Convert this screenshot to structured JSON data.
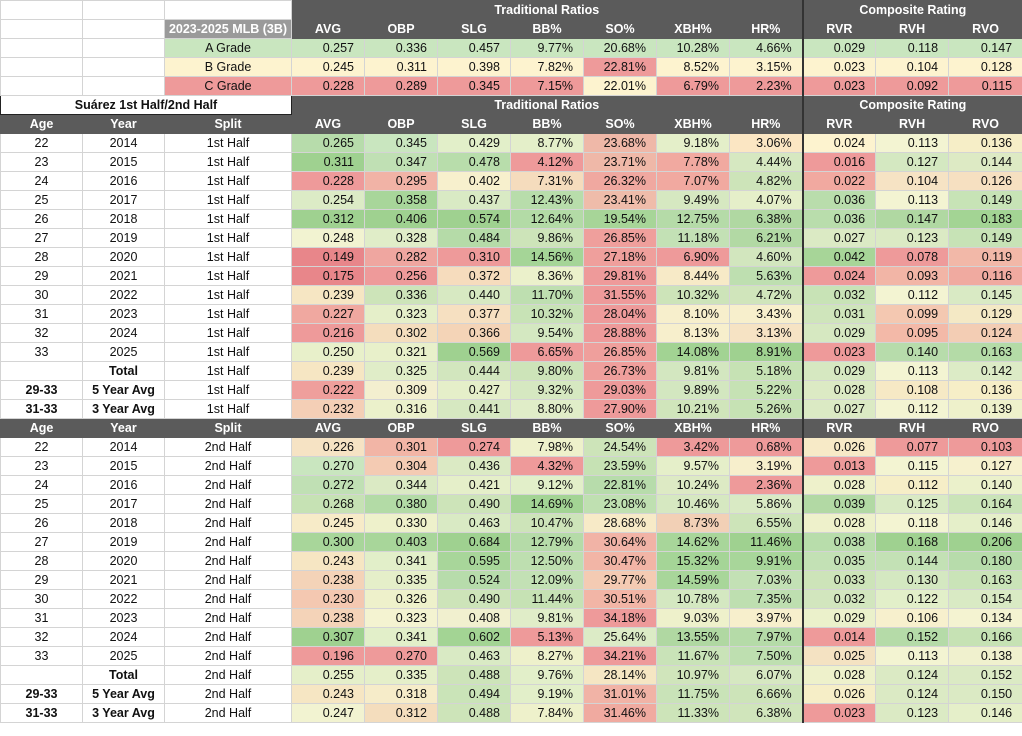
{
  "grades": {
    "label": "2023-2025 MLB (3B)",
    "group_traditional": "Traditional Ratios",
    "group_composite": "Composite Rating",
    "columns": [
      "AVG",
      "OBP",
      "SLG",
      "BB%",
      "SO%",
      "XBH%",
      "HR%",
      "RVR",
      "RVH",
      "RVO"
    ],
    "rows": [
      {
        "label": "A Grade",
        "values": [
          "0.257",
          "0.336",
          "0.457",
          "9.77%",
          "20.68%",
          "10.28%",
          "4.66%",
          "0.029",
          "0.118",
          "0.147"
        ],
        "colors": [
          "#c9e6bf",
          "#c9e6bf",
          "#c9e6bf",
          "#c9e6bf",
          "#c9e6bf",
          "#c9e6bf",
          "#c9e6bf",
          "#c9e6bf",
          "#c9e6bf",
          "#c9e6bf"
        ]
      },
      {
        "label": "B Grade",
        "values": [
          "0.245",
          "0.311",
          "0.398",
          "7.82%",
          "22.81%",
          "8.52%",
          "3.15%",
          "0.023",
          "0.104",
          "0.128"
        ],
        "colors": [
          "#fdf3cf",
          "#fdf3cf",
          "#fdf3cf",
          "#fdf3cf",
          "#ee9a9a",
          "#fdf3cf",
          "#fdf3cf",
          "#fdf3cf",
          "#fdf3cf",
          "#fdf3cf"
        ]
      },
      {
        "label": "C Grade",
        "values": [
          "0.228",
          "0.289",
          "0.345",
          "7.15%",
          "22.01%",
          "6.79%",
          "2.23%",
          "0.023",
          "0.092",
          "0.115"
        ],
        "colors": [
          "#ee9a9a",
          "#ee9a9a",
          "#ee9a9a",
          "#ee9a9a",
          "#fdf3cf",
          "#ee9a9a",
          "#ee9a9a",
          "#ee9a9a",
          "#ee9a9a",
          "#ee9a9a"
        ]
      }
    ]
  },
  "first_half": {
    "title": "Suárez 1st Half/2nd Half",
    "group_traditional": "Traditional Ratios",
    "group_composite": "Composite Rating",
    "header": [
      "Age",
      "Year",
      "Split",
      "AVG",
      "OBP",
      "SLG",
      "BB%",
      "SO%",
      "XBH%",
      "HR%",
      "RVR",
      "RVH",
      "RVO"
    ],
    "rows": [
      {
        "age": "22",
        "year": "2014",
        "split": "1st Half",
        "values": [
          "0.265",
          "0.345",
          "0.429",
          "8.77%",
          "23.68%",
          "9.18%",
          "3.06%",
          "0.024",
          "0.113",
          "0.136"
        ],
        "colors": [
          "#b7dcab",
          "#c9e6bf",
          "#e2efc9",
          "#e4efc9",
          "#efb8a8",
          "#e4efc9",
          "#fbe6c3",
          "#fdf3cf",
          "#f3f4d2",
          "#f6eec7"
        ]
      },
      {
        "age": "23",
        "year": "2015",
        "split": "1st Half",
        "values": [
          "0.311",
          "0.347",
          "0.478",
          "4.12%",
          "23.71%",
          "7.78%",
          "4.44%",
          "0.016",
          "0.127",
          "0.144"
        ],
        "colors": [
          "#9fd190",
          "#c0e0b4",
          "#b8ddab",
          "#ee9a9a",
          "#efb8a8",
          "#f1a9a0",
          "#d6e8c1",
          "#ee9a9a",
          "#d4e8c1",
          "#ddeac4"
        ]
      },
      {
        "age": "24",
        "year": "2016",
        "split": "1st Half",
        "values": [
          "0.228",
          "0.295",
          "0.402",
          "7.31%",
          "26.32%",
          "7.07%",
          "4.82%",
          "0.022",
          "0.104",
          "0.126"
        ],
        "colors": [
          "#ee9a9a",
          "#f1b3a6",
          "#f7f0cd",
          "#f5dcbd",
          "#f0a8a0",
          "#f1a9a0",
          "#cde4b9",
          "#f1a9a0",
          "#f6e3c4",
          "#f6e0c1"
        ]
      },
      {
        "age": "25",
        "year": "2017",
        "split": "1st Half",
        "values": [
          "0.254",
          "0.358",
          "0.437",
          "12.43%",
          "23.41%",
          "9.49%",
          "4.07%",
          "0.036",
          "0.113",
          "0.149"
        ],
        "colors": [
          "#dcebc6",
          "#a8d69a",
          "#d9eac4",
          "#b8ddab",
          "#efbcaa",
          "#d6e8c1",
          "#e5efc9",
          "#b9ddac",
          "#f3f4d2",
          "#c7e3b6"
        ]
      },
      {
        "age": "26",
        "year": "2018",
        "split": "1st Half",
        "values": [
          "0.312",
          "0.406",
          "0.574",
          "12.64%",
          "19.54%",
          "12.75%",
          "6.38%",
          "0.036",
          "0.147",
          "0.183"
        ],
        "colors": [
          "#9fd190",
          "#9fd190",
          "#9fd190",
          "#b3dba6",
          "#a7d598",
          "#b5dba8",
          "#b0d8a2",
          "#b9ddac",
          "#b0d8a2",
          "#a3d494"
        ]
      },
      {
        "age": "27",
        "year": "2019",
        "split": "1st Half",
        "values": [
          "0.248",
          "0.328",
          "0.484",
          "9.86%",
          "26.85%",
          "11.18%",
          "6.21%",
          "0.027",
          "0.123",
          "0.149"
        ],
        "colors": [
          "#f2f3d1",
          "#e0edc8",
          "#b5dba8",
          "#cde4b9",
          "#ef9f9c",
          "#c3e1b5",
          "#b2d9a4",
          "#dbeac4",
          "#dbeac4",
          "#c7e3b6"
        ]
      },
      {
        "age": "28",
        "year": "2020",
        "split": "1st Half",
        "values": [
          "0.149",
          "0.282",
          "0.310",
          "14.56%",
          "27.18%",
          "6.90%",
          "4.60%",
          "0.042",
          "0.078",
          "0.119"
        ],
        "colors": [
          "#e8868a",
          "#efa6a0",
          "#ee9a9a",
          "#a5d597",
          "#ef9f9c",
          "#ee9a9a",
          "#d2e6be",
          "#a7d598",
          "#ee9a9a",
          "#f2b8a8"
        ]
      },
      {
        "age": "29",
        "year": "2021",
        "split": "1st Half",
        "values": [
          "0.175",
          "0.256",
          "0.372",
          "8.36%",
          "29.81%",
          "8.44%",
          "5.63%",
          "0.024",
          "0.093",
          "0.116"
        ],
        "colors": [
          "#e8868a",
          "#ee9a9a",
          "#f6dcbd",
          "#ebf1cb",
          "#ee9a9a",
          "#f7eac7",
          "#bedfb0",
          "#ee9a9a",
          "#f2b5a6",
          "#f0aaa0"
        ]
      },
      {
        "age": "30",
        "year": "2022",
        "split": "1st Half",
        "values": [
          "0.239",
          "0.336",
          "0.440",
          "11.70%",
          "31.55%",
          "10.32%",
          "4.72%",
          "0.032",
          "0.112",
          "0.145"
        ],
        "colors": [
          "#f6e6c3",
          "#cde4b9",
          "#d7e9c2",
          "#bedfb0",
          "#ee9a9a",
          "#cde4b9",
          "#d0e5bb",
          "#c8e3b6",
          "#f3f4d2",
          "#d9eac4"
        ]
      },
      {
        "age": "31",
        "year": "2023",
        "split": "1st Half",
        "values": [
          "0.227",
          "0.323",
          "0.377",
          "10.32%",
          "28.04%",
          "8.10%",
          "3.43%",
          "0.031",
          "0.099",
          "0.129"
        ],
        "colors": [
          "#f0a8a0",
          "#e5efc9",
          "#f6e0c1",
          "#c8e3b6",
          "#ee9a9a",
          "#f7efcc",
          "#f7efcc",
          "#cfe5bb",
          "#f4c8b1",
          "#f4e9c5"
        ]
      },
      {
        "age": "32",
        "year": "2024",
        "split": "1st Half",
        "values": [
          "0.216",
          "0.302",
          "0.366",
          "9.54%",
          "28.88%",
          "8.13%",
          "3.13%",
          "0.029",
          "0.095",
          "0.124"
        ],
        "colors": [
          "#ee9a9a",
          "#f4ddbd",
          "#f4d4b7",
          "#d4e8c1",
          "#ee9a9a",
          "#f7efcc",
          "#f6e3c4",
          "#d6e8c1",
          "#f3b9a8",
          "#f3cdb4"
        ]
      },
      {
        "age": "33",
        "year": "2025",
        "split": "1st Half",
        "values": [
          "0.250",
          "0.321",
          "0.569",
          "6.65%",
          "26.85%",
          "14.08%",
          "8.91%",
          "0.023",
          "0.140",
          "0.163"
        ],
        "colors": [
          "#e8f0ca",
          "#e8f0ca",
          "#9fd190",
          "#ee9a9a",
          "#ef9f9c",
          "#a2d393",
          "#9fd190",
          "#ee9a9a",
          "#b7dcab",
          "#b4dba7"
        ]
      },
      {
        "age": "",
        "year": "Total",
        "split": "1st Half",
        "values": [
          "0.239",
          "0.325",
          "0.444",
          "9.80%",
          "26.73%",
          "9.81%",
          "5.18%",
          "0.029",
          "0.113",
          "0.142"
        ],
        "colors": [
          "#f6e6c3",
          "#e0edc8",
          "#d2e6be",
          "#cde4b9",
          "#ef9f9c",
          "#d3e7c0",
          "#c6e2b4",
          "#d6e8c1",
          "#f3f4d2",
          "#dcebc6"
        ]
      },
      {
        "age": "29-33",
        "year": "5 Year Avg",
        "split": "1st Half",
        "values": [
          "0.222",
          "0.309",
          "0.427",
          "9.32%",
          "29.03%",
          "9.89%",
          "5.22%",
          "0.028",
          "0.108",
          "0.136"
        ],
        "colors": [
          "#ef9f9c",
          "#f3efcf",
          "#e5efc9",
          "#d6e8c1",
          "#ee9a9a",
          "#d3e7c0",
          "#c6e2b4",
          "#dceac4",
          "#f6e9c5",
          "#f6eec7"
        ]
      },
      {
        "age": "31-33",
        "year": "3 Year Avg",
        "split": "1st Half",
        "values": [
          "0.232",
          "0.316",
          "0.441",
          "8.80%",
          "27.90%",
          "10.21%",
          "5.26%",
          "0.027",
          "0.112",
          "0.139"
        ],
        "colors": [
          "#f4cfb6",
          "#ebf1cb",
          "#d6e8c1",
          "#e0edc8",
          "#ee9a9a",
          "#d0e5bb",
          "#c6e2b4",
          "#dbeac4",
          "#f3f4d2",
          "#eef1cb"
        ]
      }
    ]
  },
  "second_half": {
    "header": [
      "Age",
      "Year",
      "Split",
      "AVG",
      "OBP",
      "SLG",
      "BB%",
      "SO%",
      "XBH%",
      "HR%",
      "RVR",
      "RVH",
      "RVO"
    ],
    "rows": [
      {
        "age": "22",
        "year": "2014",
        "split": "2nd Half",
        "values": [
          "0.226",
          "0.301",
          "0.274",
          "7.98%",
          "24.54%",
          "3.42%",
          "0.68%",
          "0.026",
          "0.077",
          "0.103"
        ],
        "colors": [
          "#f6e3c4",
          "#f2b5a6",
          "#ee9a9a",
          "#eef1cb",
          "#cde4b9",
          "#ee9a9a",
          "#ee9a9a",
          "#f7eac7",
          "#ee9a9a",
          "#ee9a9a"
        ]
      },
      {
        "age": "23",
        "year": "2015",
        "split": "2nd Half",
        "values": [
          "0.270",
          "0.304",
          "0.436",
          "4.32%",
          "23.59%",
          "9.57%",
          "3.19%",
          "0.013",
          "0.115",
          "0.127"
        ],
        "colors": [
          "#c9e6bf",
          "#f4cbb3",
          "#dbeac4",
          "#ee9a9a",
          "#c6e2b4",
          "#e5efc9",
          "#f7efcc",
          "#ee9a9a",
          "#f3f4d2",
          "#f6f1ce"
        ]
      },
      {
        "age": "24",
        "year": "2016",
        "split": "2nd Half",
        "values": [
          "0.272",
          "0.344",
          "0.421",
          "9.12%",
          "22.81%",
          "10.24%",
          "2.36%",
          "0.028",
          "0.112",
          "0.140"
        ],
        "colors": [
          "#c0e0b4",
          "#dbeac4",
          "#e5efc9",
          "#e2efc9",
          "#b7dcab",
          "#ddeac4",
          "#ee9a9a",
          "#eef1cb",
          "#f6eec7",
          "#ebf1cb"
        ]
      },
      {
        "age": "25",
        "year": "2017",
        "split": "2nd Half",
        "values": [
          "0.268",
          "0.380",
          "0.490",
          "14.69%",
          "23.08%",
          "10.46%",
          "5.86%",
          "0.039",
          "0.125",
          "0.164"
        ],
        "colors": [
          "#c6e2b4",
          "#b3dba6",
          "#cde4b9",
          "#a3d494",
          "#bfe0b1",
          "#d6e8c1",
          "#d9eac4",
          "#b2d9a4",
          "#d9eac4",
          "#cae4b8"
        ]
      },
      {
        "age": "26",
        "year": "2018",
        "split": "2nd Half",
        "values": [
          "0.245",
          "0.330",
          "0.463",
          "10.47%",
          "28.68%",
          "8.73%",
          "6.55%",
          "0.028",
          "0.118",
          "0.146"
        ],
        "colors": [
          "#f7ebc8",
          "#eef1cb",
          "#d9eac4",
          "#cde4b9",
          "#f7eac7",
          "#f2d0b6",
          "#cde4b9",
          "#eef1cb",
          "#f3f4d2",
          "#e5efc9"
        ]
      },
      {
        "age": "27",
        "year": "2019",
        "split": "2nd Half",
        "values": [
          "0.300",
          "0.403",
          "0.684",
          "12.79%",
          "30.64%",
          "14.62%",
          "11.46%",
          "0.038",
          "0.168",
          "0.206"
        ],
        "colors": [
          "#a8d69a",
          "#a8d69a",
          "#9fd190",
          "#b5dba8",
          "#f1b3a6",
          "#a8d69a",
          "#9fd190",
          "#b8ddab",
          "#9fd190",
          "#9fd190"
        ]
      },
      {
        "age": "28",
        "year": "2020",
        "split": "2nd Half",
        "values": [
          "0.243",
          "0.341",
          "0.595",
          "12.50%",
          "30.47%",
          "15.32%",
          "9.91%",
          "0.035",
          "0.144",
          "0.180"
        ],
        "colors": [
          "#f6e6c3",
          "#e2efc9",
          "#a8d69a",
          "#bedfb0",
          "#f2b5a6",
          "#a5d597",
          "#a8d69a",
          "#c3e1b5",
          "#c3e1b5",
          "#b7dcab"
        ]
      },
      {
        "age": "29",
        "year": "2021",
        "split": "2nd Half",
        "values": [
          "0.238",
          "0.335",
          "0.524",
          "12.09%",
          "29.77%",
          "14.59%",
          "7.03%",
          "0.033",
          "0.130",
          "0.163"
        ],
        "colors": [
          "#f4d3b8",
          "#e5efc9",
          "#b7dcab",
          "#c3e1b5",
          "#f4cbb3",
          "#a8d69a",
          "#c3e1b5",
          "#cde4b9",
          "#d4e8c1",
          "#cae4b8"
        ]
      },
      {
        "age": "30",
        "year": "2022",
        "split": "2nd Half",
        "values": [
          "0.230",
          "0.326",
          "0.490",
          "11.44%",
          "30.51%",
          "10.78%",
          "7.35%",
          "0.032",
          "0.122",
          "0.154"
        ],
        "colors": [
          "#f4c8b1",
          "#eef1cb",
          "#cde4b9",
          "#c6e2b4",
          "#f2b5a6",
          "#d4e8c1",
          "#bedfb0",
          "#d2e6be",
          "#e2efc9",
          "#d9eac4"
        ]
      },
      {
        "age": "31",
        "year": "2023",
        "split": "2nd Half",
        "values": [
          "0.238",
          "0.323",
          "0.408",
          "9.81%",
          "34.18%",
          "9.03%",
          "3.97%",
          "0.029",
          "0.106",
          "0.134"
        ],
        "colors": [
          "#f4d3b8",
          "#f4f3d1",
          "#f1f0cf",
          "#e0edc8",
          "#ee9a9a",
          "#eef1cb",
          "#f7efcc",
          "#ebf1cb",
          "#f7f0cd",
          "#f4f3d1"
        ]
      },
      {
        "age": "32",
        "year": "2024",
        "split": "2nd Half",
        "values": [
          "0.307",
          "0.341",
          "0.602",
          "5.13%",
          "25.64%",
          "13.55%",
          "7.97%",
          "0.014",
          "0.152",
          "0.166"
        ],
        "colors": [
          "#9fd190",
          "#e2efc9",
          "#a3d494",
          "#ee9a9a",
          "#dcebc6",
          "#b0d8a2",
          "#b5dba8",
          "#ee9a9a",
          "#b5dba8",
          "#c6e2b4"
        ]
      },
      {
        "age": "33",
        "year": "2025",
        "split": "2nd Half",
        "values": [
          "0.196",
          "0.270",
          "0.463",
          "8.27%",
          "34.21%",
          "11.67%",
          "7.50%",
          "0.025",
          "0.113",
          "0.138"
        ],
        "colors": [
          "#ee9a9a",
          "#ee9a9a",
          "#d9eac4",
          "#eef1cb",
          "#ee9a9a",
          "#c9e3b8",
          "#bedfb0",
          "#f4e2c2",
          "#f3f4d2",
          "#f0f1ce"
        ]
      },
      {
        "age": "",
        "year": "Total",
        "split": "2nd Half",
        "values": [
          "0.255",
          "0.335",
          "0.488",
          "9.76%",
          "28.14%",
          "10.97%",
          "6.07%",
          "0.028",
          "0.124",
          "0.152"
        ],
        "colors": [
          "#e5efc9",
          "#e5efc9",
          "#cde4b9",
          "#e2efc9",
          "#f5e6c3",
          "#d0e5bb",
          "#d6e8c1",
          "#eef1cb",
          "#dbeac4",
          "#dbeac4"
        ]
      },
      {
        "age": "29-33",
        "year": "5 Year Avg",
        "split": "2nd Half",
        "values": [
          "0.243",
          "0.318",
          "0.494",
          "9.19%",
          "31.01%",
          "11.75%",
          "6.66%",
          "0.026",
          "0.124",
          "0.150"
        ],
        "colors": [
          "#f6e6c3",
          "#f6ecc9",
          "#cae4b8",
          "#e2efc9",
          "#f1b3a6",
          "#c9e3b8",
          "#cde4b9",
          "#f6eec7",
          "#dbeac4",
          "#dbeac4"
        ]
      },
      {
        "age": "31-33",
        "year": "3 Year Avg",
        "split": "2nd Half",
        "values": [
          "0.247",
          "0.312",
          "0.488",
          "7.84%",
          "31.46%",
          "11.33%",
          "6.38%",
          "0.023",
          "0.123",
          "0.146"
        ],
        "colors": [
          "#f2f3d1",
          "#f4ddbd",
          "#cde4b9",
          "#eef1cb",
          "#f0aaa0",
          "#cde4b9",
          "#d0e5bb",
          "#ee9a9a",
          "#dbeac4",
          "#e5efc9"
        ]
      }
    ]
  }
}
